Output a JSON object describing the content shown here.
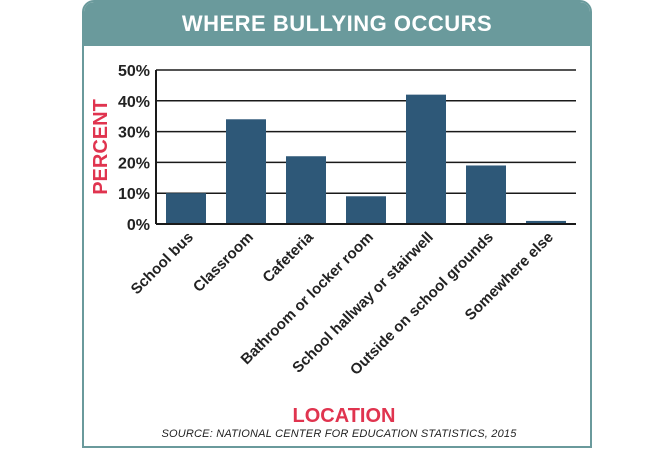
{
  "title": "WHERE BULLYING OCCURS",
  "source": "SOURCE: NATIONAL CENTER FOR EDUCATION STATISTICS, 2015",
  "colors": {
    "frame": "#6a9a9c",
    "bar": "#2e5878",
    "axis_label": "#e0344f",
    "text": "#222222"
  },
  "chart_data": {
    "type": "bar",
    "title": "WHERE BULLYING OCCURS",
    "xlabel": "LOCATION",
    "ylabel": "PERCENT",
    "categories": [
      "School bus",
      "Classroom",
      "Cafeteria",
      "Bathroom or locker room",
      "School hallway or stairwell",
      "Outside on school grounds",
      "Somewhere else"
    ],
    "values": [
      10,
      34,
      22,
      9,
      42,
      19,
      1
    ],
    "ylim": [
      0,
      50
    ],
    "yticks": [
      0,
      10,
      20,
      30,
      40,
      50
    ],
    "ytick_labels": [
      "0%",
      "10%",
      "20%",
      "30%",
      "40%",
      "50%"
    ],
    "grid": true,
    "legend": "none"
  }
}
